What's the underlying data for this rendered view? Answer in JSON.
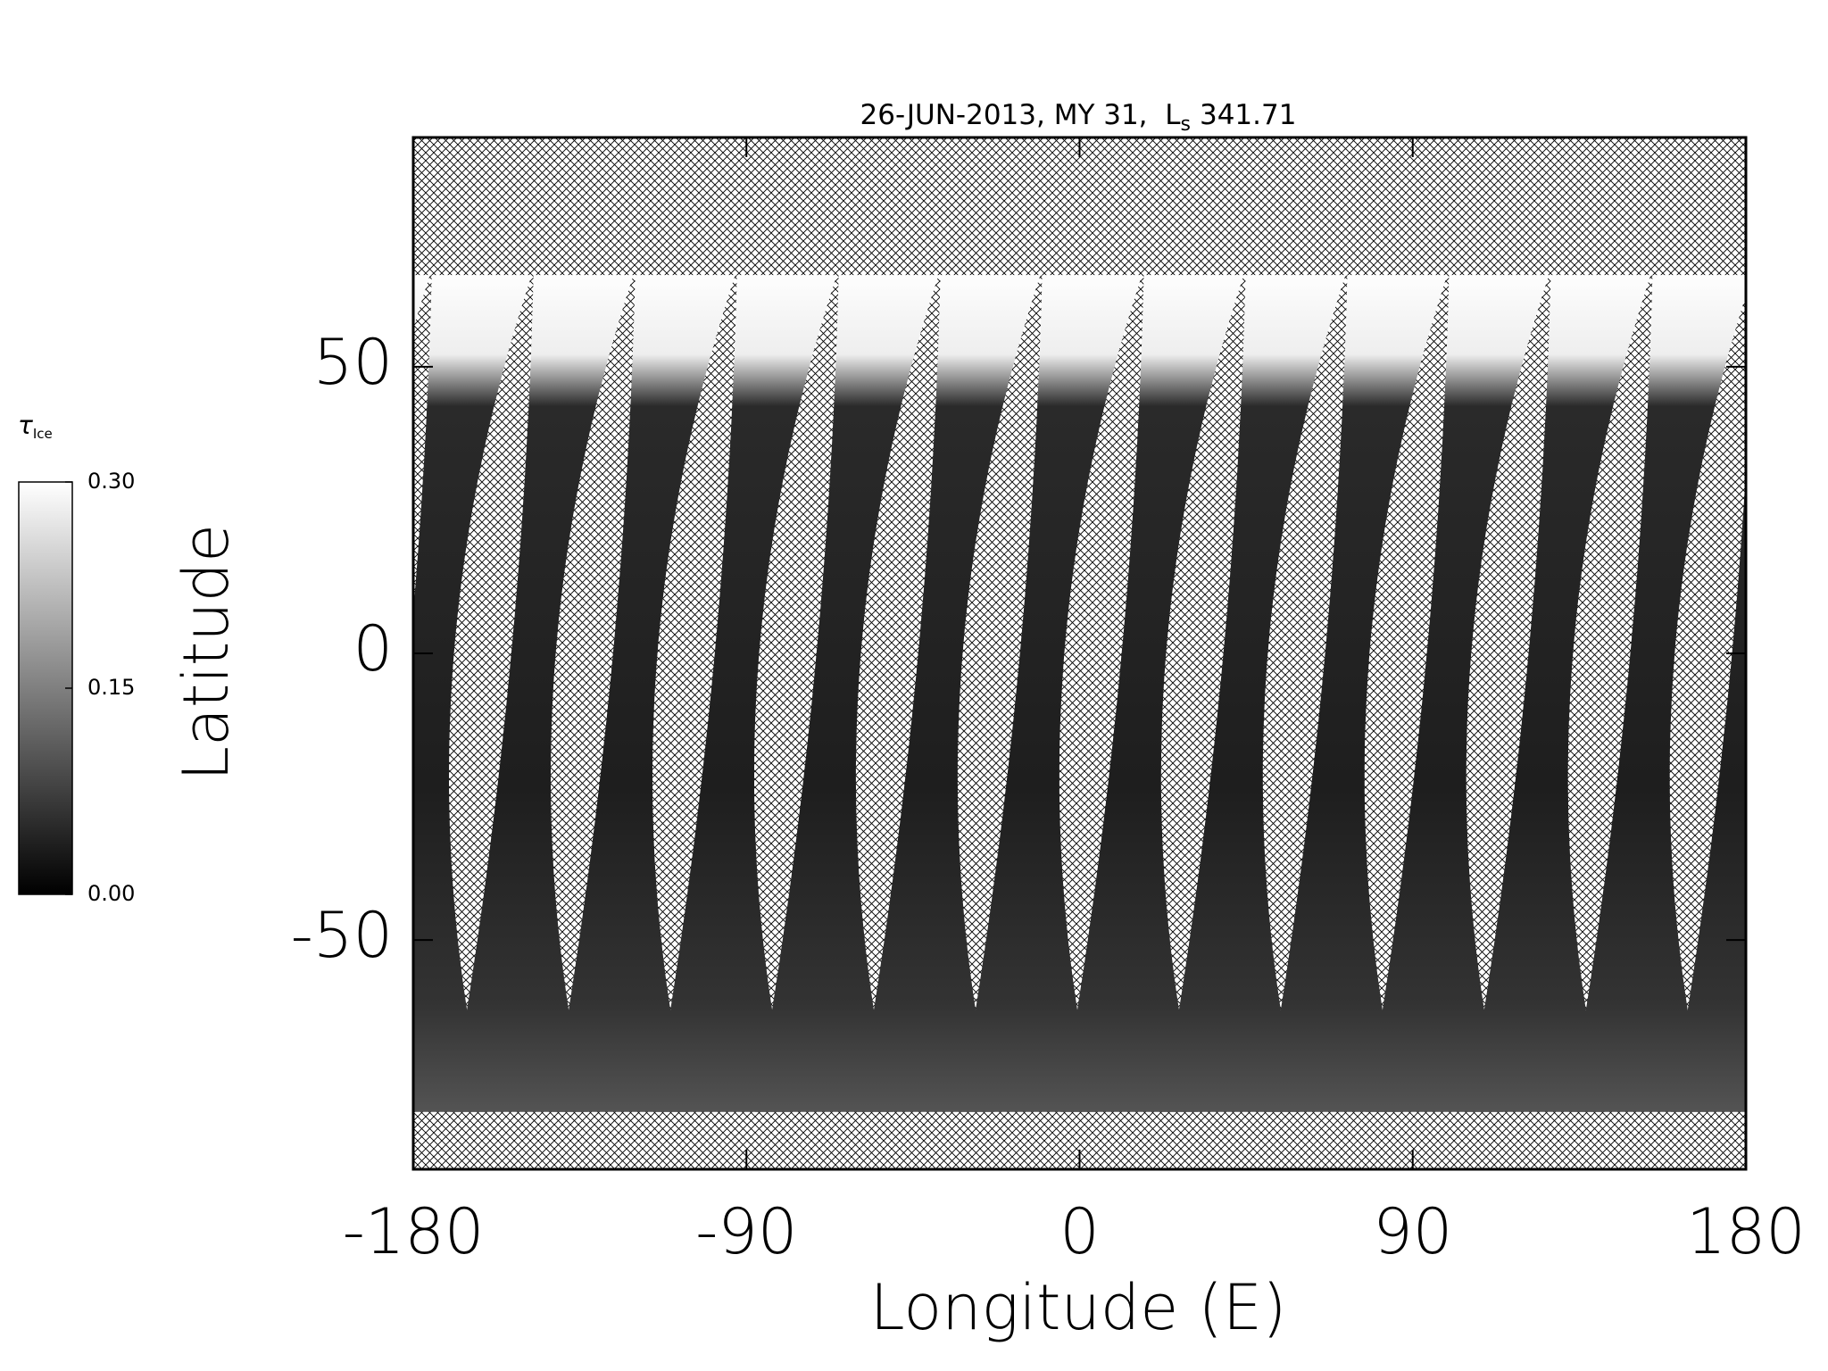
{
  "chart_data": {
    "type": "map",
    "title": {
      "text": "26-JUN-2013, MY 31,  L",
      "subscript": "s",
      "value": 341.71
    },
    "x_label": "Longitude (E)",
    "y_label": "Latitude",
    "xlim": [
      -180,
      180
    ],
    "xticks": [
      -180,
      -90,
      0,
      90,
      180
    ],
    "ylim": [
      -90,
      90
    ],
    "yticks": [
      -50,
      0,
      50
    ],
    "colorbar": {
      "label": "τ",
      "label_subscript": "Ice",
      "range": [
        0,
        0.3
      ],
      "ticks": [
        {
          "value": 0,
          "label": "0.00"
        },
        0.15,
        {
          "value": 0.3,
          "label": "0.30"
        }
      ],
      "colors": [
        "#000000",
        "#ffffff"
      ]
    }
  }
}
